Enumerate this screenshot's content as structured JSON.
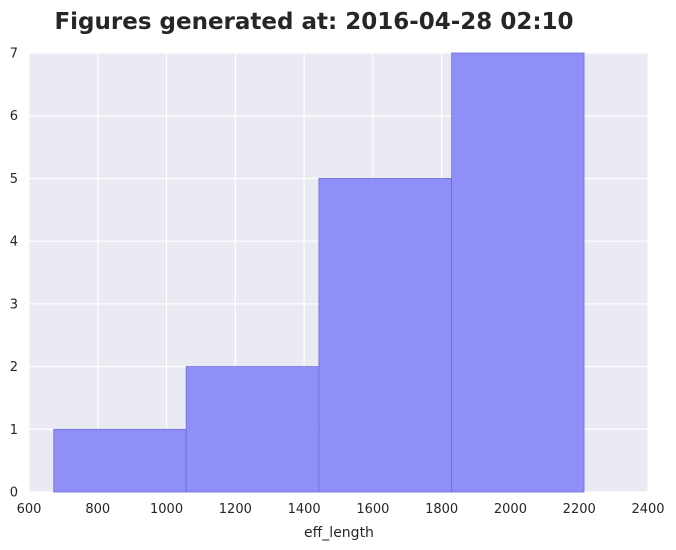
{
  "chart_data": {
    "type": "bar",
    "title": "Figures generated at: 2016-04-28 02:10",
    "xlabel": "eff_length",
    "ylabel": "",
    "xlim": [
      600,
      2400
    ],
    "ylim": [
      0,
      7
    ],
    "xticks": [
      600,
      800,
      1000,
      1200,
      1400,
      1600,
      1800,
      2000,
      2200,
      2400
    ],
    "yticks": [
      0,
      1,
      2,
      3,
      4,
      5,
      6,
      7
    ],
    "grid": true,
    "legend": "none",
    "bins": [
      {
        "start": 672,
        "end": 1057,
        "count": 1
      },
      {
        "start": 1057,
        "end": 1443,
        "count": 2
      },
      {
        "start": 1443,
        "end": 1829,
        "count": 5
      },
      {
        "start": 1829,
        "end": 2214,
        "count": 7
      }
    ],
    "colors": {
      "background": "#eaeaf2",
      "grid": "#ffffff",
      "bar_fill": "#8a8af7",
      "bar_edge": "#6e6ed6",
      "text": "#262626"
    }
  }
}
